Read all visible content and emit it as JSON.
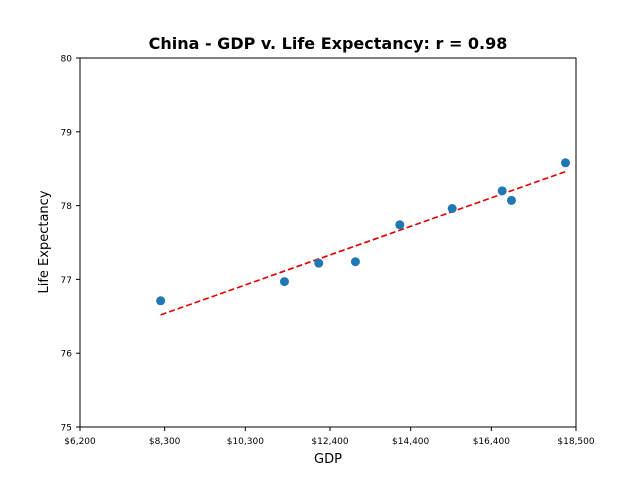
{
  "chart_data": {
    "type": "scatter",
    "title": "China - GDP v. Life Expectancy: r = 0.98",
    "xlabel": "GDP",
    "ylabel": "Life Expectancy",
    "xlim": [
      6200,
      18500
    ],
    "ylim": [
      75,
      80
    ],
    "x_ticks": [
      6200,
      8300,
      10300,
      12400,
      14400,
      16400,
      18500
    ],
    "x_tick_labels": [
      "$6,200",
      "$8,300",
      "$10,300",
      "$12,400",
      "$14,400",
      "$16,400",
      "$18,500"
    ],
    "y_ticks": [
      75,
      76,
      77,
      78,
      79,
      80
    ],
    "y_tick_labels": [
      "75",
      "76",
      "77",
      "78",
      "79",
      "80"
    ],
    "points": [
      {
        "x": 8200,
        "y": 76.71
      },
      {
        "x": 11270,
        "y": 76.97
      },
      {
        "x": 12120,
        "y": 77.22
      },
      {
        "x": 13030,
        "y": 77.24
      },
      {
        "x": 14130,
        "y": 77.74
      },
      {
        "x": 15430,
        "y": 77.96
      },
      {
        "x": 16670,
        "y": 78.2
      },
      {
        "x": 16900,
        "y": 78.07
      },
      {
        "x": 18240,
        "y": 78.58
      }
    ],
    "trendline": {
      "x1": 8200,
      "y1": 76.52,
      "x2": 18240,
      "y2": 78.46
    },
    "point_color": "#1f77b4",
    "trendline_color": "#e00000",
    "grid": false,
    "legend": false
  }
}
